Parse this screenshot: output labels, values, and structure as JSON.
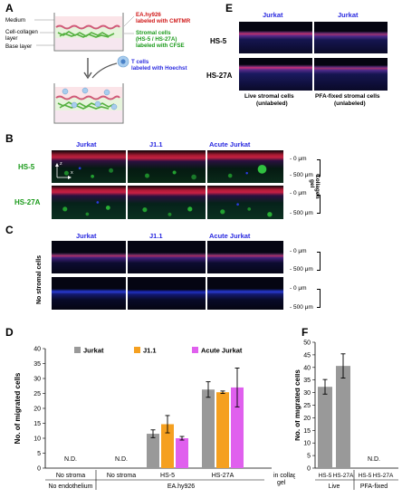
{
  "panels": {
    "A": {
      "label": "A",
      "layers": [
        "Medium",
        "Cell-collagen",
        "layer",
        "Base layer"
      ],
      "annot_ea": [
        "EA.hy926",
        "labeled with CMTMR"
      ],
      "annot_stromal": [
        "Stromal cells",
        "(HS-5 / HS-27A)",
        "labeled with CFSE"
      ],
      "annot_t": [
        "T cells",
        "labeled with Hoechst"
      ]
    },
    "B": {
      "label": "B",
      "cols": [
        "Jurkat",
        "J1.1",
        "Acute Jurkat"
      ],
      "rows": [
        "HS-5",
        "HS-27A"
      ],
      "depth_top": "- 0 μm",
      "depth_bottom": "- 500 μm",
      "side": [
        "Collagen",
        "gel"
      ],
      "axis_z": "z",
      "axis_x": "x"
    },
    "C": {
      "label": "C",
      "cols": [
        "Jurkat",
        "J1.1",
        "Acute Jurkat"
      ],
      "side": "No stromal cells",
      "depth_top": "- 0 μm",
      "depth_bottom": "- 500 μm"
    },
    "E": {
      "label": "E",
      "cols": [
        "Jurkat",
        "Jurkat"
      ],
      "rows": [
        "HS-5",
        "HS-27A"
      ],
      "captions": [
        [
          "Live stromal cells",
          "(unlabeled)"
        ],
        [
          "PFA-fixed stromal cells",
          "(unlabeled)"
        ]
      ]
    }
  },
  "chart_data": [
    {
      "panel": "D",
      "type": "bar",
      "ylabel": "No. of migrated cells",
      "ylim": [
        0,
        40
      ],
      "yticks": [
        0,
        5,
        10,
        15,
        20,
        25,
        30,
        35,
        40
      ],
      "legend": [
        "Jurkat",
        "J1.1",
        "Acute Jurkat"
      ],
      "legend_placement": "top",
      "groups": [
        "No stroma",
        "No stroma",
        "HS-5",
        "HS-27A"
      ],
      "group_label2": [
        "No endothelium",
        "EA.hy926"
      ],
      "axis_note": [
        "in collagen",
        "gel"
      ],
      "not_detected": "N.D.",
      "series": [
        {
          "name": "Jurkat",
          "color": "#999999",
          "values": [
            null,
            null,
            11.5,
            26.3
          ],
          "errors": [
            null,
            null,
            1.3,
            2.6
          ]
        },
        {
          "name": "J1.1",
          "color": "#f5a020",
          "values": [
            null,
            null,
            14.7,
            25.4
          ],
          "errors": [
            null,
            null,
            2.9,
            0.4
          ]
        },
        {
          "name": "Acute Jurkat",
          "color": "#e060ee",
          "values": [
            null,
            null,
            10.0,
            27.0
          ],
          "errors": [
            null,
            null,
            0.6,
            6.5
          ]
        }
      ]
    },
    {
      "panel": "F",
      "type": "bar",
      "ylabel": "No. of migrated cells",
      "ylim": [
        0,
        50
      ],
      "yticks": [
        0,
        5,
        10,
        15,
        20,
        25,
        30,
        35,
        40,
        45,
        50
      ],
      "categories": [
        "HS-5",
        "HS-27A",
        "HS-5",
        "HS-27A"
      ],
      "groups": [
        "Live",
        "PFA-fixed"
      ],
      "not_detected": "N.D.",
      "color": "#999999",
      "values": [
        32.3,
        40.6,
        null,
        null
      ],
      "errors": [
        2.9,
        4.8,
        null,
        null
      ]
    }
  ]
}
